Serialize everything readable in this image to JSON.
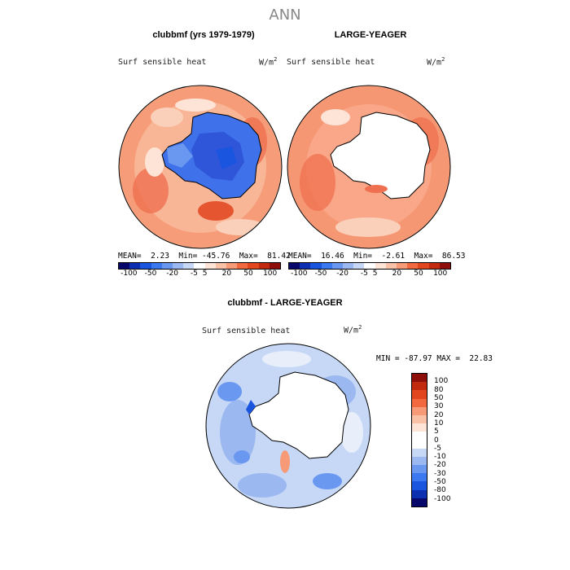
{
  "page_title": "ANN",
  "top_left": {
    "title": "clubbmf (yrs 1979-1979)",
    "variable": "Surf sensible heat",
    "units": "W/m",
    "units_exp": "2",
    "mean_label": "MEAN=",
    "mean": "2.23",
    "min_label": "Min=",
    "min": "-45.76",
    "max_label": "Max=",
    "max": "81.42"
  },
  "top_right": {
    "title": "LARGE-YEAGER",
    "variable": "Surf sensible heat",
    "units": "W/m",
    "units_exp": "2",
    "mean_label": "MEAN=",
    "mean": "16.46",
    "min_label": "Min=",
    "min": "-2.61",
    "max_label": "Max=",
    "max": "86.53"
  },
  "bottom": {
    "title": "clubbmf - LARGE-YEAGER",
    "variable": "Surf sensible heat",
    "units": "W/m",
    "units_exp": "2",
    "minmax_text": "MIN = -87.97 MAX =  22.83"
  },
  "h_colorbar": {
    "colors": [
      "#08086a",
      "#0b2fb0",
      "#1a55e0",
      "#3c78f0",
      "#6a98f0",
      "#9bb8f0",
      "#c6d8f6",
      "#ffffff",
      "#fde4d6",
      "#f9c2a6",
      "#f79a78",
      "#f2683f",
      "#e2461e",
      "#c22a10",
      "#8e0e0a"
    ],
    "tick_labels": [
      "-100",
      "-50",
      "-20",
      "-5",
      "5",
      "20",
      "50",
      "100"
    ]
  },
  "v_colorbar": {
    "colors": [
      "#8e0e0a",
      "#c22a10",
      "#e2461e",
      "#f2683f",
      "#f79a78",
      "#f9c2a6",
      "#fde4d6",
      "#ffffff",
      "#ffffff",
      "#c6d8f6",
      "#9bb8f0",
      "#6a98f0",
      "#3c78f0",
      "#1a55e0",
      "#0b2fb0",
      "#08086a"
    ],
    "tick_labels": [
      "100",
      "80",
      "50",
      "30",
      "20",
      "10",
      "5",
      "0",
      "-5",
      "-10",
      "-20",
      "-30",
      "-50",
      "-80",
      "-100"
    ]
  },
  "colors": {
    "ocean_warm": "#f7a582",
    "ocean_hot": "#ef7050",
    "ocean_light": "#fbd0bb",
    "land_cold": "#3f72ea",
    "land_deep": "#2f55d8",
    "diff_base": "#c6d8f6",
    "diff_mid": "#9bb8f0",
    "diff_dark": "#6a98f0"
  }
}
